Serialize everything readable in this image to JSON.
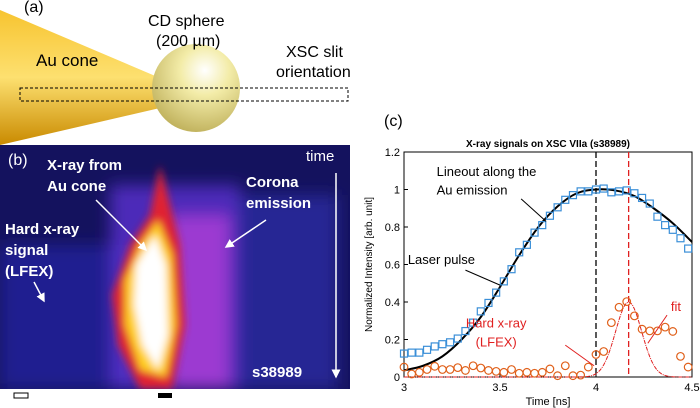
{
  "panel_a": {
    "label": "(a)",
    "cone_label": "Au cone",
    "sphere_label_1": "CD sphere",
    "sphere_label_2": "(200 µm)",
    "slit_label_1": "XSC slit",
    "slit_label_2": "orientation",
    "colors": {
      "cone": "#f0b400",
      "sphere": "#eee5a0"
    }
  },
  "panel_b": {
    "label": "(b)",
    "xray_label_1": "X-ray from",
    "xray_label_2": "Au cone",
    "corona_label_1": "Corona",
    "corona_label_2": "emission",
    "hard_label_1": "Hard x-ray",
    "hard_label_2": "signal",
    "hard_label_3": "(LFEX)",
    "time_label": "time",
    "shot_label": "s38989",
    "colors": {
      "background": "#10105a",
      "mid": "#8a3ae0",
      "hot": "#ff2020",
      "peak": "#ffffff"
    }
  },
  "chart_data": {
    "panel_label": "(c)",
    "type": "scatter",
    "title": "X-ray signals on XSC VIIa (s38989)",
    "xlabel": "Time [ns]",
    "ylabel": "Normalized Intensity [arb. unit]",
    "xlim": [
      3,
      4.5
    ],
    "ylim": [
      0,
      1.2
    ],
    "xticks": [
      "3",
      "3.5",
      "4",
      "4.5"
    ],
    "yticks": [
      "0",
      "0.2",
      "0.4",
      "0.6",
      "0.8",
      "1",
      "1.2"
    ],
    "grid": false,
    "annotations": {
      "lineout_1": "Lineout along the",
      "lineout_2": "Au emission",
      "laser": "Laser pulse",
      "hard_1": "Hard x-ray",
      "hard_2": "(LFEX)",
      "fit": "fit"
    },
    "vlines": [
      {
        "x": 4.0,
        "color": "#000000"
      },
      {
        "x": 4.17,
        "color": "#e02020"
      }
    ],
    "au_emission_squares": {
      "color": "#3a8fd8",
      "x_start": 3.0,
      "x_step": 0.04,
      "values": [
        0.125,
        0.13,
        0.13,
        0.145,
        0.163,
        0.175,
        0.185,
        0.205,
        0.245,
        0.29,
        0.35,
        0.395,
        0.45,
        0.51,
        0.575,
        0.665,
        0.705,
        0.77,
        0.81,
        0.86,
        0.905,
        0.945,
        0.97,
        0.99,
        0.99,
        1.0,
        1.005,
        0.985,
        0.99,
        0.995,
        0.98,
        0.955,
        0.925,
        0.855,
        0.81,
        0.785,
        0.74,
        0.685
      ]
    },
    "laser_pulse_curve": {
      "color": "#000000",
      "x": [
        3,
        3.1,
        3.2,
        3.3,
        3.4,
        3.5,
        3.6,
        3.7,
        3.8,
        3.9,
        4.0,
        4.1,
        4.2,
        4.3,
        4.4,
        4.5
      ],
      "y": [
        0.035,
        0.06,
        0.11,
        0.2,
        0.32,
        0.48,
        0.65,
        0.8,
        0.91,
        0.98,
        1.0,
        0.995,
        0.965,
        0.9,
        0.82,
        0.72
      ]
    },
    "hard_xray_circles": {
      "color": "#e0601a",
      "x_start": 3.0,
      "x_step": 0.04,
      "values": [
        0.053,
        0.016,
        0.025,
        0.04,
        0.057,
        0.04,
        0.04,
        0.05,
        0.035,
        0.06,
        0.048,
        0.035,
        0.03,
        0.025,
        0.04,
        0.02,
        0.025,
        0.02,
        0.025,
        0.043,
        0.007,
        0.06,
        0.007,
        0.01,
        0.053,
        0.12,
        0.136,
        0.29,
        0.372,
        0.402,
        0.326,
        0.255,
        0.246,
        0.246,
        0.266,
        0.243,
        0.11,
        0.053
      ]
    },
    "fit_curve": {
      "color": "#e02020",
      "model": "gaussian",
      "center": 4.17,
      "amplitude": 0.4,
      "sigma": 0.068
    }
  }
}
